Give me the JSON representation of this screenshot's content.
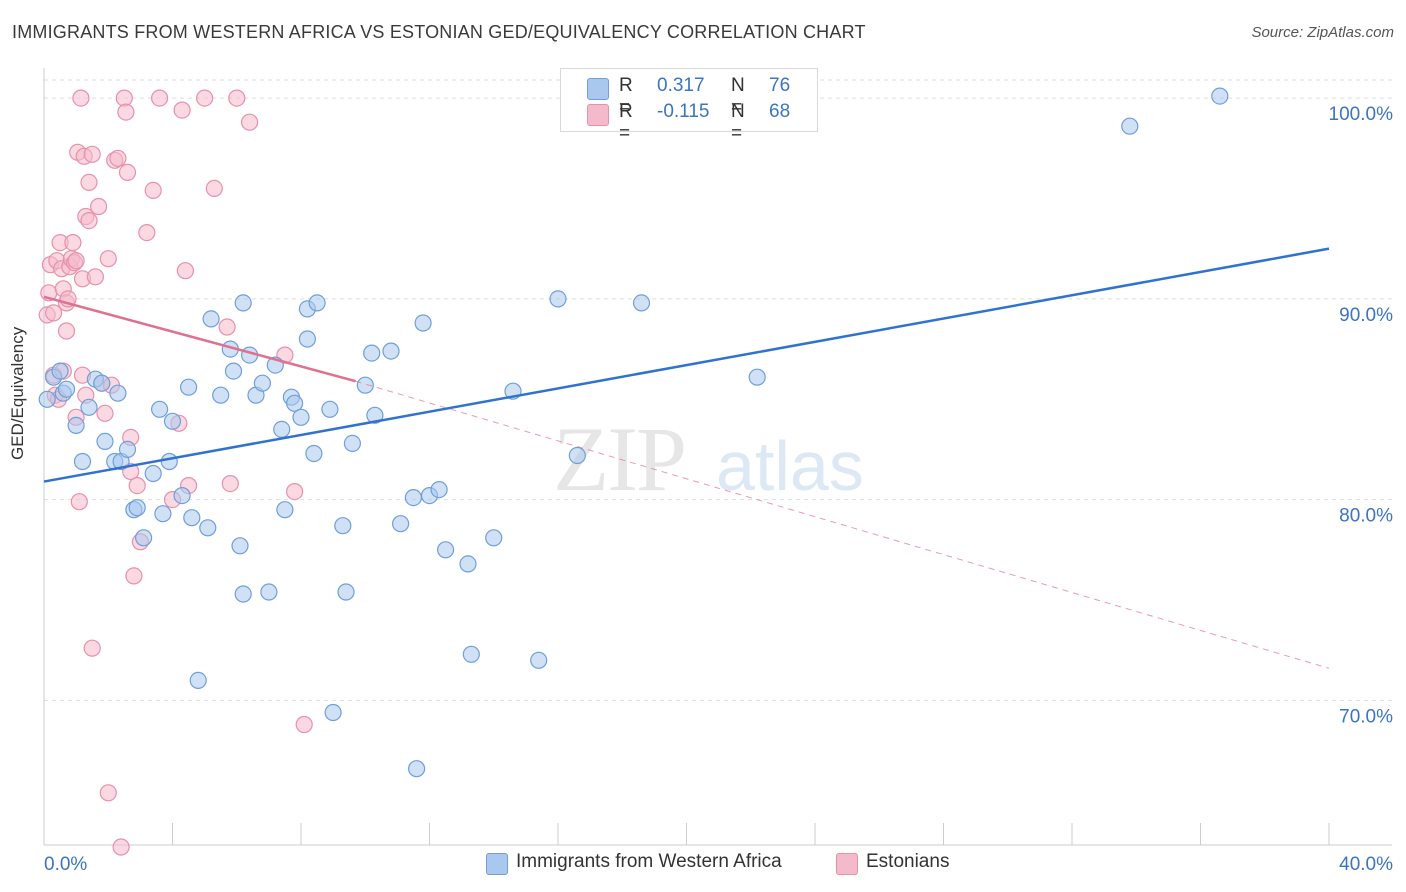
{
  "title": "IMMIGRANTS FROM WESTERN AFRICA VS ESTONIAN GED/EQUIVALENCY CORRELATION CHART",
  "source": "Source: ZipAtlas.com",
  "watermark": {
    "zip": "ZIP",
    "atlas": "atlas"
  },
  "legend": {
    "series1": {
      "r_label": "R =",
      "r_value": "0.317",
      "n_label": "N =",
      "n_value": "76"
    },
    "series2": {
      "r_label": "R =",
      "r_value": "-0.115",
      "n_label": "N =",
      "n_value": "68"
    }
  },
  "bottom_legend": {
    "series1": "Immigrants from Western Africa",
    "series2": "Estonians"
  },
  "colors": {
    "blue_fill": "#aac8ee",
    "blue_stroke": "#6f9fd8",
    "blue_line": "#2f72d0",
    "pink_fill": "#f5b9cc",
    "pink_stroke": "#e890ac",
    "pink_line": "#e0708f",
    "axis_label": "#3b74c4",
    "grid": "#dddddd"
  },
  "chart_data": {
    "type": "scatter",
    "title": "IMMIGRANTS FROM WESTERN AFRICA VS ESTONIAN GED/EQUIVALENCY CORRELATION CHART",
    "xlabel": "",
    "ylabel": "GED/Equivalency",
    "xlim": [
      0,
      40
    ],
    "ylim": [
      62.8,
      100.9
    ],
    "x_tick_labels": [
      "0.0%",
      "40.0%"
    ],
    "y_ticks": [
      70,
      80,
      90,
      100
    ],
    "y_tick_labels": [
      "70.0%",
      "80.0%",
      "90.0%",
      "100.0%"
    ],
    "grid": true,
    "legend_position": "top-center",
    "series": [
      {
        "name": "Immigrants from Western Africa",
        "color": "#aac8ee",
        "r": 0.317,
        "n": 76,
        "trend": {
          "x": [
            0,
            40
          ],
          "y": [
            80.9,
            92.5
          ]
        },
        "points": [
          [
            0.1,
            85.0
          ],
          [
            0.3,
            86.1
          ],
          [
            0.5,
            86.4
          ],
          [
            0.6,
            85.3
          ],
          [
            0.7,
            85.5
          ],
          [
            1.0,
            83.7
          ],
          [
            1.2,
            81.9
          ],
          [
            1.4,
            84.6
          ],
          [
            1.6,
            86.0
          ],
          [
            1.8,
            85.8
          ],
          [
            1.9,
            82.9
          ],
          [
            2.2,
            81.9
          ],
          [
            2.3,
            85.3
          ],
          [
            2.4,
            81.9
          ],
          [
            2.6,
            82.5
          ],
          [
            2.8,
            79.5
          ],
          [
            2.9,
            79.6
          ],
          [
            3.1,
            78.1
          ],
          [
            3.4,
            81.3
          ],
          [
            3.6,
            84.5
          ],
          [
            3.7,
            79.3
          ],
          [
            3.9,
            81.9
          ],
          [
            4.0,
            83.9
          ],
          [
            4.3,
            80.2
          ],
          [
            4.5,
            85.6
          ],
          [
            4.6,
            79.1
          ],
          [
            4.8,
            71.0
          ],
          [
            5.1,
            78.6
          ],
          [
            5.2,
            89.0
          ],
          [
            5.5,
            85.2
          ],
          [
            5.8,
            87.5
          ],
          [
            5.9,
            86.4
          ],
          [
            6.1,
            77.7
          ],
          [
            6.2,
            75.3
          ],
          [
            6.2,
            89.8
          ],
          [
            6.4,
            87.2
          ],
          [
            6.6,
            85.2
          ],
          [
            6.8,
            85.8
          ],
          [
            7.0,
            75.4
          ],
          [
            7.2,
            86.7
          ],
          [
            7.4,
            83.5
          ],
          [
            7.5,
            79.5
          ],
          [
            7.7,
            85.1
          ],
          [
            7.8,
            84.8
          ],
          [
            8.0,
            84.1
          ],
          [
            8.2,
            88.0
          ],
          [
            8.2,
            89.5
          ],
          [
            8.4,
            82.3
          ],
          [
            8.5,
            89.8
          ],
          [
            8.9,
            84.5
          ],
          [
            9.0,
            69.4
          ],
          [
            9.3,
            78.7
          ],
          [
            9.4,
            75.4
          ],
          [
            9.6,
            82.8
          ],
          [
            10.0,
            85.7
          ],
          [
            10.2,
            87.3
          ],
          [
            10.3,
            84.2
          ],
          [
            10.8,
            87.4
          ],
          [
            11.1,
            78.8
          ],
          [
            11.5,
            80.1
          ],
          [
            11.6,
            66.6
          ],
          [
            11.8,
            88.8
          ],
          [
            12.0,
            80.2
          ],
          [
            12.3,
            80.5
          ],
          [
            12.5,
            77.5
          ],
          [
            13.2,
            76.8
          ],
          [
            13.3,
            72.3
          ],
          [
            14.0,
            78.1
          ],
          [
            14.6,
            85.4
          ],
          [
            15.4,
            72.0
          ],
          [
            16.0,
            90.0
          ],
          [
            16.6,
            82.2
          ],
          [
            18.6,
            89.8
          ],
          [
            22.2,
            86.1
          ],
          [
            33.8,
            98.6
          ],
          [
            36.6,
            100.1
          ]
        ]
      },
      {
        "name": "Estonians",
        "color": "#f5b9cc",
        "r": -0.115,
        "n": 68,
        "trend": {
          "x": [
            0,
            9.7
          ],
          "y": [
            90.1,
            85.9
          ]
        },
        "trend_dashed": {
          "x": [
            9.7,
            40
          ],
          "y": [
            85.9,
            71.6
          ]
        },
        "points": [
          [
            0.1,
            89.2
          ],
          [
            0.15,
            90.3
          ],
          [
            0.2,
            91.7
          ],
          [
            0.3,
            89.3
          ],
          [
            0.35,
            85.2
          ],
          [
            0.4,
            91.9
          ],
          [
            0.5,
            92.8
          ],
          [
            0.55,
            91.5
          ],
          [
            0.6,
            90.5
          ],
          [
            0.7,
            89.8
          ],
          [
            0.7,
            88.4
          ],
          [
            0.75,
            90.0
          ],
          [
            0.8,
            91.6
          ],
          [
            0.85,
            92.0
          ],
          [
            0.9,
            92.8
          ],
          [
            0.95,
            91.8
          ],
          [
            1.0,
            91.9
          ],
          [
            1.0,
            84.1
          ],
          [
            1.05,
            97.3
          ],
          [
            1.1,
            79.9
          ],
          [
            1.15,
            100.0
          ],
          [
            1.2,
            91.0
          ],
          [
            1.25,
            97.1
          ],
          [
            1.3,
            94.1
          ],
          [
            1.4,
            95.8
          ],
          [
            1.4,
            93.9
          ],
          [
            1.5,
            97.2
          ],
          [
            1.5,
            72.6
          ],
          [
            1.6,
            91.1
          ],
          [
            1.7,
            94.6
          ],
          [
            1.8,
            85.8
          ],
          [
            1.9,
            84.3
          ],
          [
            2.0,
            92.0
          ],
          [
            2.0,
            65.4
          ],
          [
            2.1,
            85.7
          ],
          [
            2.2,
            96.9
          ],
          [
            2.3,
            97.0
          ],
          [
            2.4,
            62.7
          ],
          [
            2.5,
            100.0
          ],
          [
            2.55,
            99.3
          ],
          [
            2.6,
            96.3
          ],
          [
            2.7,
            81.4
          ],
          [
            2.7,
            83.1
          ],
          [
            2.8,
            76.2
          ],
          [
            2.9,
            80.7
          ],
          [
            3.0,
            77.9
          ],
          [
            3.2,
            93.3
          ],
          [
            3.4,
            95.4
          ],
          [
            3.6,
            100.0
          ],
          [
            4.0,
            80.0
          ],
          [
            4.2,
            83.8
          ],
          [
            4.3,
            99.4
          ],
          [
            4.4,
            91.4
          ],
          [
            4.5,
            80.7
          ],
          [
            5.0,
            100.0
          ],
          [
            5.3,
            95.5
          ],
          [
            5.7,
            88.6
          ],
          [
            5.8,
            80.8
          ],
          [
            6.0,
            100.0
          ],
          [
            6.4,
            98.8
          ],
          [
            7.5,
            87.2
          ],
          [
            7.8,
            80.4
          ],
          [
            8.1,
            68.8
          ],
          [
            0.3,
            86.2
          ],
          [
            0.6,
            86.4
          ],
          [
            1.3,
            85.2
          ],
          [
            0.45,
            85.0
          ],
          [
            1.2,
            86.2
          ]
        ]
      }
    ]
  }
}
